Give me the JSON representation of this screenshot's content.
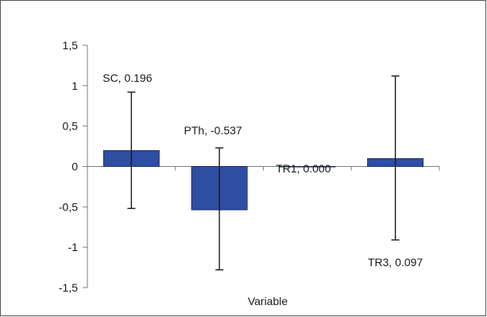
{
  "chart_data": {
    "type": "bar",
    "xlabel": "Variable",
    "ylabel": "",
    "ylim": [
      -1.5,
      1.5
    ],
    "y_ticks": [
      "1,5",
      "1",
      "0,5",
      "0",
      "-0,5",
      "-1",
      "-1,5"
    ],
    "grid": false,
    "legend": "none",
    "bar_color": "#2E4EA3",
    "bar_edge_color": "#1F2F66",
    "series": [
      {
        "values": [
          0.196,
          -0.537,
          0.0,
          0.097
        ],
        "error_low": [
          -0.52,
          -1.28,
          0.0,
          -0.91
        ],
        "error_high": [
          0.92,
          0.23,
          0.0,
          1.12
        ],
        "data_labels": [
          "SC, 0.196",
          "PTh, -0.537",
          "TR1, 0.000",
          "TR3, 0.097"
        ]
      }
    ]
  }
}
